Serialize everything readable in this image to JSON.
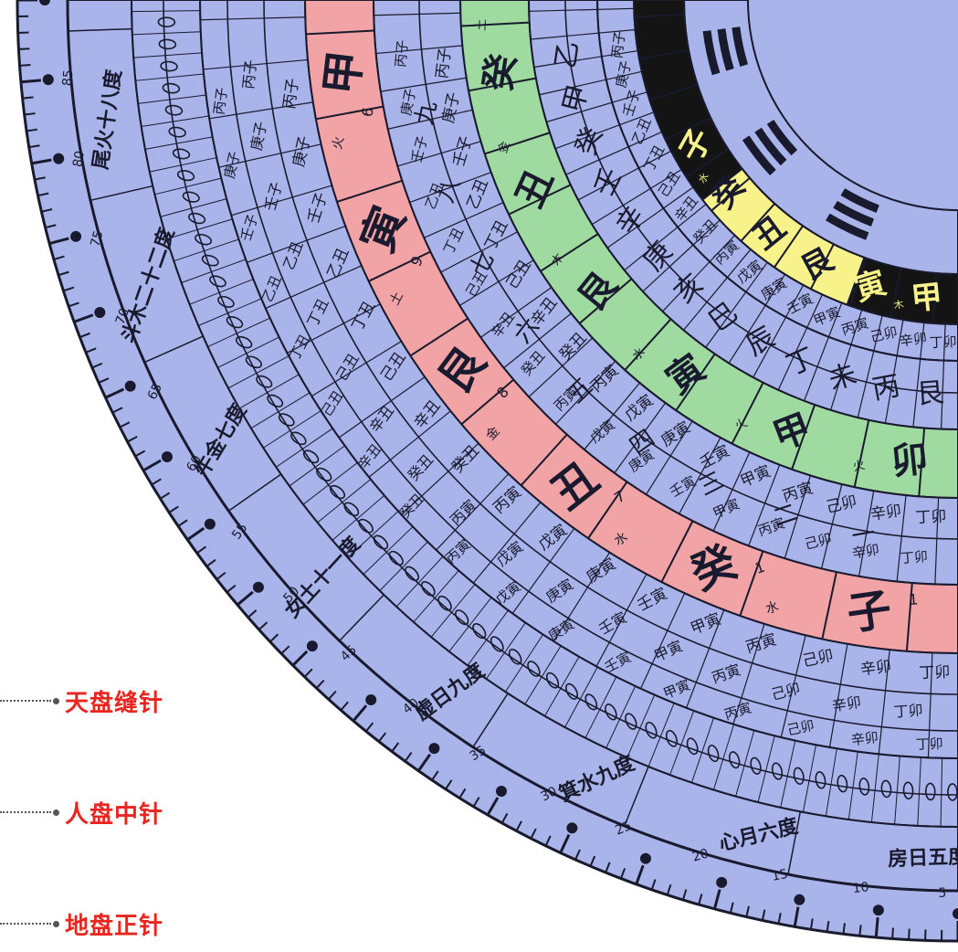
{
  "callouts": {
    "heaven_needle": "天盘缝针",
    "human_needle": "人盘中针",
    "earth_needle": "地盘正针"
  },
  "colors": {
    "disc": "#a9b5ea",
    "ink": "#1a1a2e",
    "red_ring": "#f1a3a6",
    "green_ring": "#9fdba0",
    "yellow_ring": "#f7f28a",
    "dark_ring": "#141414",
    "callout_text": "#e8261f"
  },
  "rings": {
    "red": {
      "labels": [
        "甲",
        "寅",
        "艮",
        "丑",
        "癸",
        "子"
      ],
      "numbers": [
        "6",
        "9",
        "8",
        "7",
        "1",
        "1"
      ],
      "elements": [
        "火",
        "土",
        "金",
        "水",
        "水"
      ]
    },
    "green": {
      "labels": [
        "卯",
        "甲",
        "寅",
        "艮",
        "丑",
        "癸"
      ],
      "elements": [
        "火",
        "火",
        "水",
        "木",
        "金",
        "土"
      ]
    },
    "yellow": {
      "labels": [
        "甲",
        "寅",
        "艮",
        "丑",
        "癸",
        "子"
      ],
      "elements": [
        "木",
        "木",
        "土",
        "土",
        "水"
      ]
    },
    "inner": {
      "labels": [
        "艮",
        "丙",
        "未",
        "丁",
        "辰",
        "巳",
        "亥",
        "庚",
        "辛",
        "壬",
        "癸",
        "甲",
        "乙"
      ]
    }
  },
  "middle_text": [
    "丁卯",
    "辛卯",
    "己卯",
    "丙寅",
    "甲寅",
    "壬寅",
    "庚寅",
    "戊寅",
    "丙寅",
    "癸丑",
    "辛丑",
    "己丑",
    "丁丑",
    "乙丑",
    "壬子",
    "庚子",
    "丙子"
  ],
  "numerals": [
    "一",
    "二",
    "三",
    "四",
    "五",
    "六",
    "七",
    "八",
    "九"
  ],
  "mansion_text": [
    "尾火十八度",
    "斗木二十二度",
    "牛金七度",
    "女土十一度",
    "虚日九度",
    "箕水九度",
    "心月六度",
    "房日五度"
  ],
  "scale_numbers": [
    "85",
    "80",
    "75",
    "70",
    "65",
    "60",
    "55",
    "50",
    "45",
    "40",
    "35",
    "30",
    "25",
    "20",
    "15",
    "10",
    "5"
  ]
}
